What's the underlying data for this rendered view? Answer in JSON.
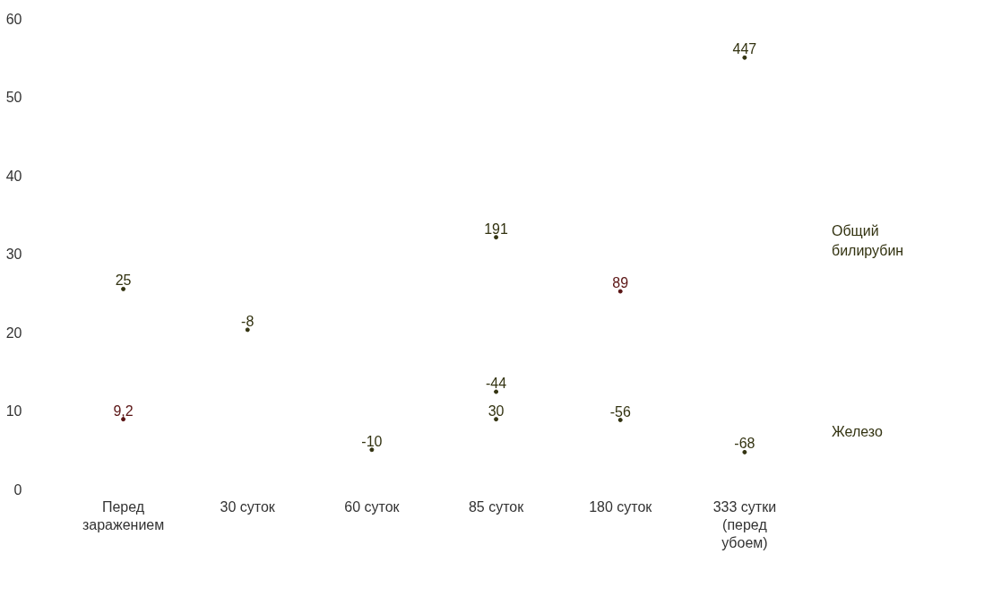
{
  "chart_data": {
    "type": "scatter",
    "marker": "circle",
    "categories": [
      "Перед заражением",
      "30 суток",
      "60 суток",
      "85 суток",
      "180 суток",
      "333 сутки (перед убоем)"
    ],
    "ylim": [
      0,
      60
    ],
    "yticks": [
      0,
      10,
      20,
      30,
      40,
      50,
      60
    ],
    "series": [
      {
        "name": "Общий билирубин",
        "color": "#333311",
        "values": [
          25.5,
          20.3,
          null,
          32.1,
          25.2,
          55
        ],
        "colors": [
          "#333311",
          "#333311",
          null,
          "#333311",
          "#5a1414",
          "#333311"
        ]
      },
      {
        "name": "Железо",
        "color": "#333311",
        "values": [
          8.9,
          null,
          5,
          8.9,
          8.8,
          4.7
        ],
        "colors": [
          "#5a1414",
          null,
          "#333311",
          "#333311",
          "#333311",
          "#333311"
        ]
      },
      {
        "color": "#333311",
        "values": [
          null,
          null,
          null,
          12.4,
          null,
          null
        ]
      }
    ],
    "annotations": [
      {
        "text": "25",
        "x": "Перед заражением",
        "y": 25.5
      },
      {
        "text": "-8",
        "x": "30 суток",
        "y": 20.3
      },
      {
        "text": "191",
        "x": "85 суток",
        "y": 32.1
      },
      {
        "text": "89",
        "x": "180 суток",
        "y": 25.2
      },
      {
        "text": "447",
        "x": "333 сутки (перед убоем)",
        "y": 55
      },
      {
        "text": "9,2",
        "x": "Перед заражением",
        "y": 8.9
      },
      {
        "text": "-10",
        "x": "60 суток",
        "y": 5
      },
      {
        "text": "30",
        "x": "85 суток",
        "y": 8.9
      },
      {
        "text": "-44",
        "x": "85 суток",
        "y": 12.4
      },
      {
        "text": "-56",
        "x": "180 суток",
        "y": 8.8
      },
      {
        "text": "-68",
        "x": "333 сутки (перед убоем)",
        "y": 4.7
      }
    ]
  }
}
